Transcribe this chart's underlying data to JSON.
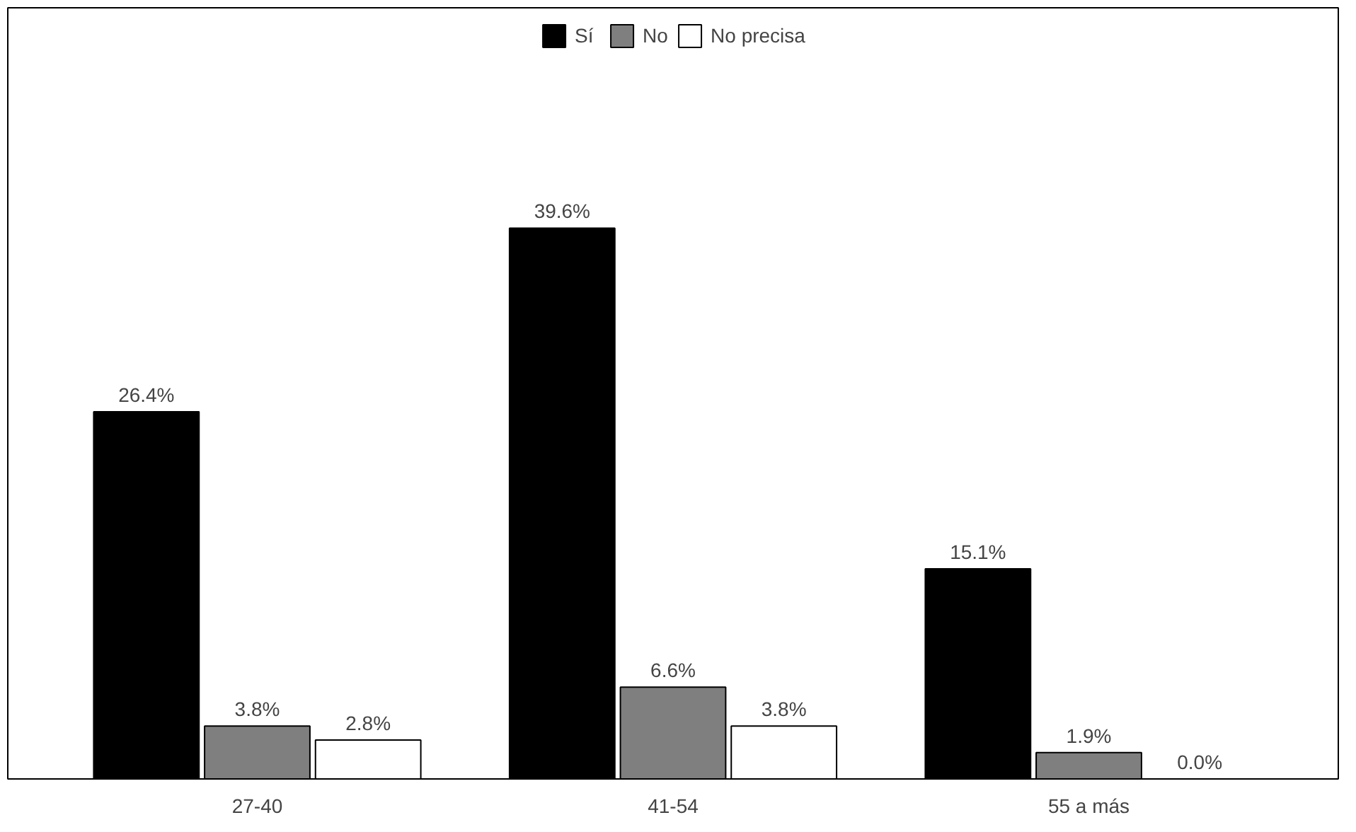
{
  "chart_data": {
    "type": "bar",
    "categories": [
      "27-40",
      "41-54",
      "55 a más"
    ],
    "series": [
      {
        "name": "Sí",
        "color": "#000000",
        "values": [
          26.4,
          39.6,
          15.1
        ],
        "value_labels": [
          "26.4%",
          "39.6%",
          "15.1%"
        ]
      },
      {
        "name": "No",
        "color": "#7f7f7f",
        "values": [
          3.8,
          6.6,
          1.9
        ],
        "value_labels": [
          "3.8%",
          "6.6%",
          "1.9%"
        ]
      },
      {
        "name": "No precisa",
        "color": "#ffffff",
        "values": [
          2.8,
          3.8,
          0.0
        ],
        "value_labels": [
          "2.8%",
          "3.8%",
          "0.0%"
        ]
      }
    ],
    "legend": "top",
    "grid": false
  }
}
